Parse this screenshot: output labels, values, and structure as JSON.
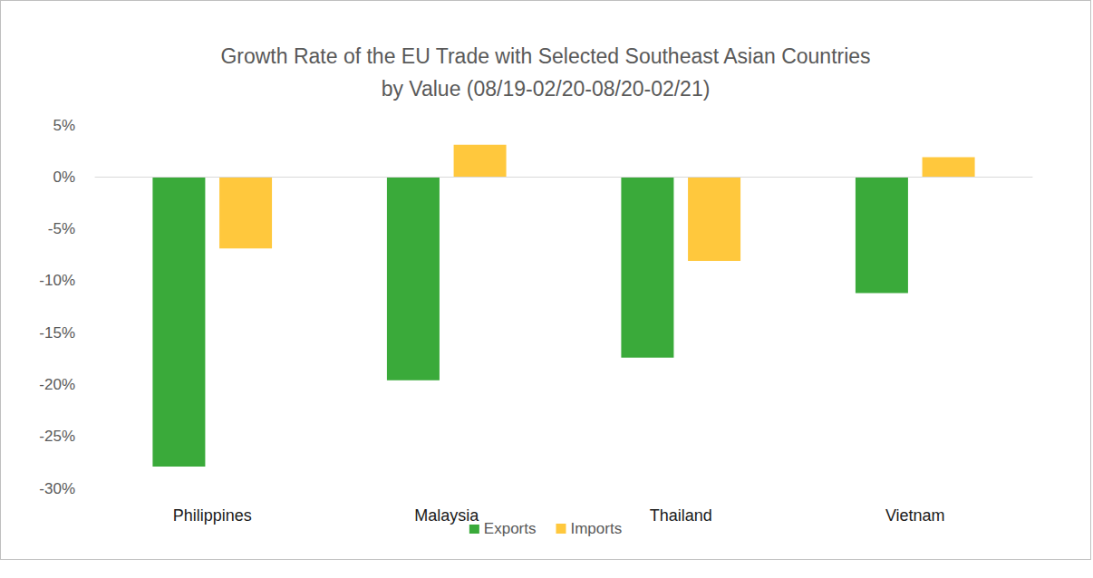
{
  "chart_data": {
    "type": "bar",
    "title": "Growth Rate of the EU Trade with Selected Southeast Asian Countries\nby Value (08/19-02/20-08/20-02/21)",
    "categories": [
      "Philippines",
      "Malaysia",
      "Thailand",
      "Vietnam"
    ],
    "series": [
      {
        "name": "Exports",
        "color": "#3aaa3a",
        "values": [
          -27.9,
          -19.6,
          -17.4,
          -11.2
        ]
      },
      {
        "name": "Imports",
        "color": "#ffc83d",
        "values": [
          -6.9,
          3.1,
          -8.1,
          1.9
        ]
      }
    ],
    "ylim": [
      -30,
      5
    ],
    "yticks": [
      {
        "value": -30,
        "label": "-30%"
      },
      {
        "value": -25,
        "label": "-25%"
      },
      {
        "value": -20,
        "label": "-20%"
      },
      {
        "value": -15,
        "label": "-15%"
      },
      {
        "value": -10,
        "label": "-10%"
      },
      {
        "value": -5,
        "label": "-5%"
      },
      {
        "value": 0,
        "label": "0%"
      },
      {
        "value": 5,
        "label": "5%"
      }
    ],
    "grid": false,
    "legend": "bottom"
  }
}
